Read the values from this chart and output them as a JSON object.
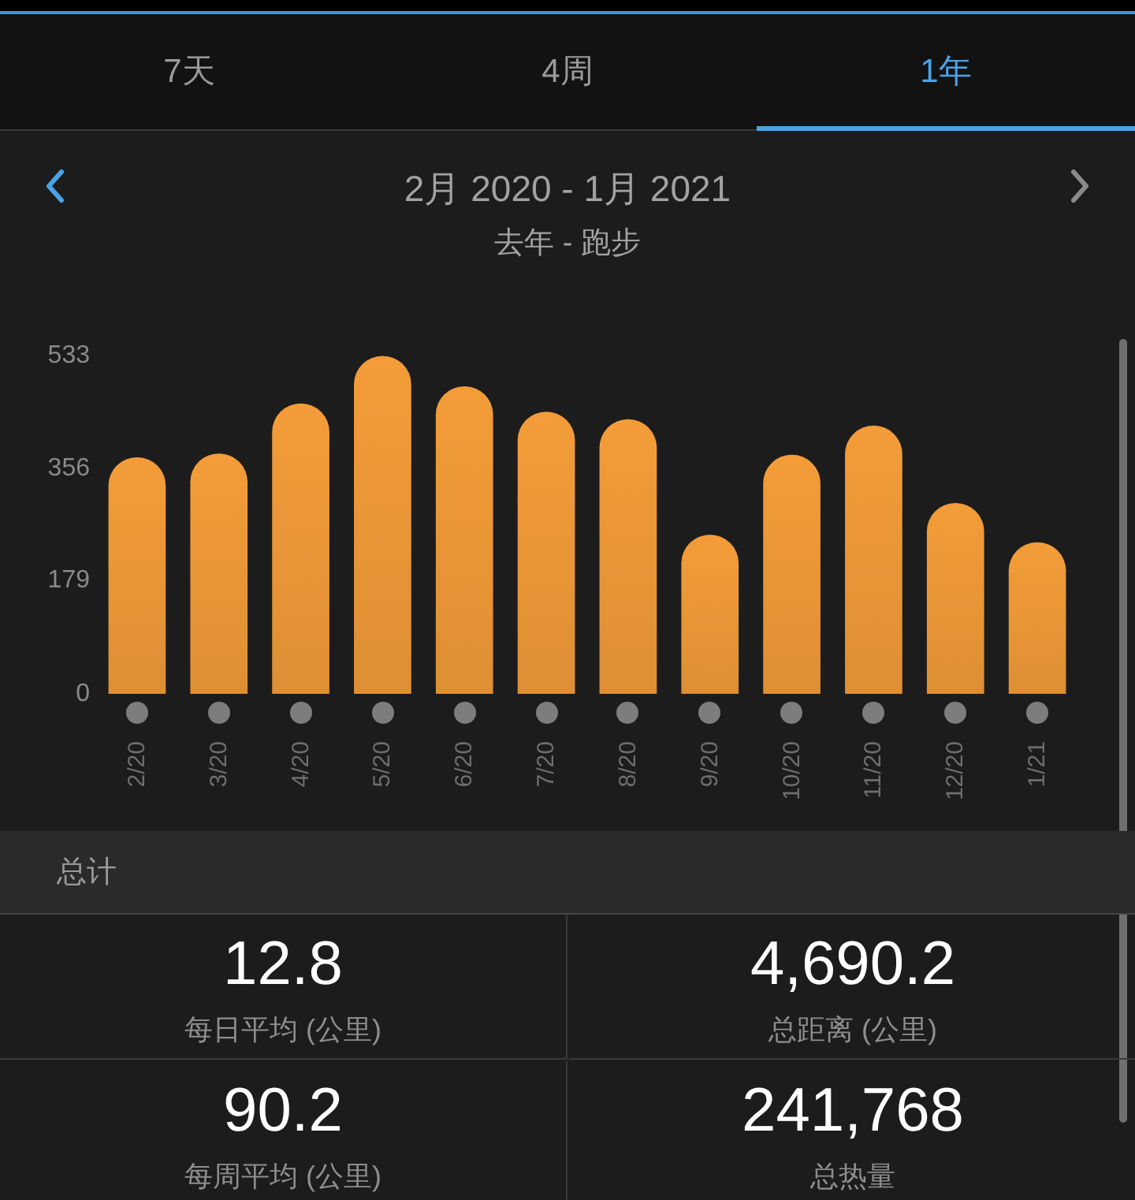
{
  "chart_data": {
    "type": "bar",
    "title": "2月 2020 - 1月 2021",
    "subtitle": "去年 - 跑步",
    "categories": [
      "2/20",
      "3/20",
      "4/20",
      "5/20",
      "6/20",
      "7/20",
      "8/20",
      "9/20",
      "10/20",
      "11/20",
      "12/20",
      "1/21"
    ],
    "values": [
      373,
      379,
      458,
      533,
      485,
      445,
      433,
      251,
      377,
      423,
      301,
      239
    ],
    "color": "#ea9637",
    "ylim": [
      0,
      533
    ],
    "yticks": [
      0,
      179,
      356,
      533
    ],
    "annotations": [
      "7天",
      "4周",
      "1年",
      "总计",
      "12.8",
      "每日平均 (公里)",
      "4,690.2",
      "总距离 (公里)",
      "90.2",
      "每周平均 (公里)",
      "241,768",
      "总热量"
    ]
  }
}
